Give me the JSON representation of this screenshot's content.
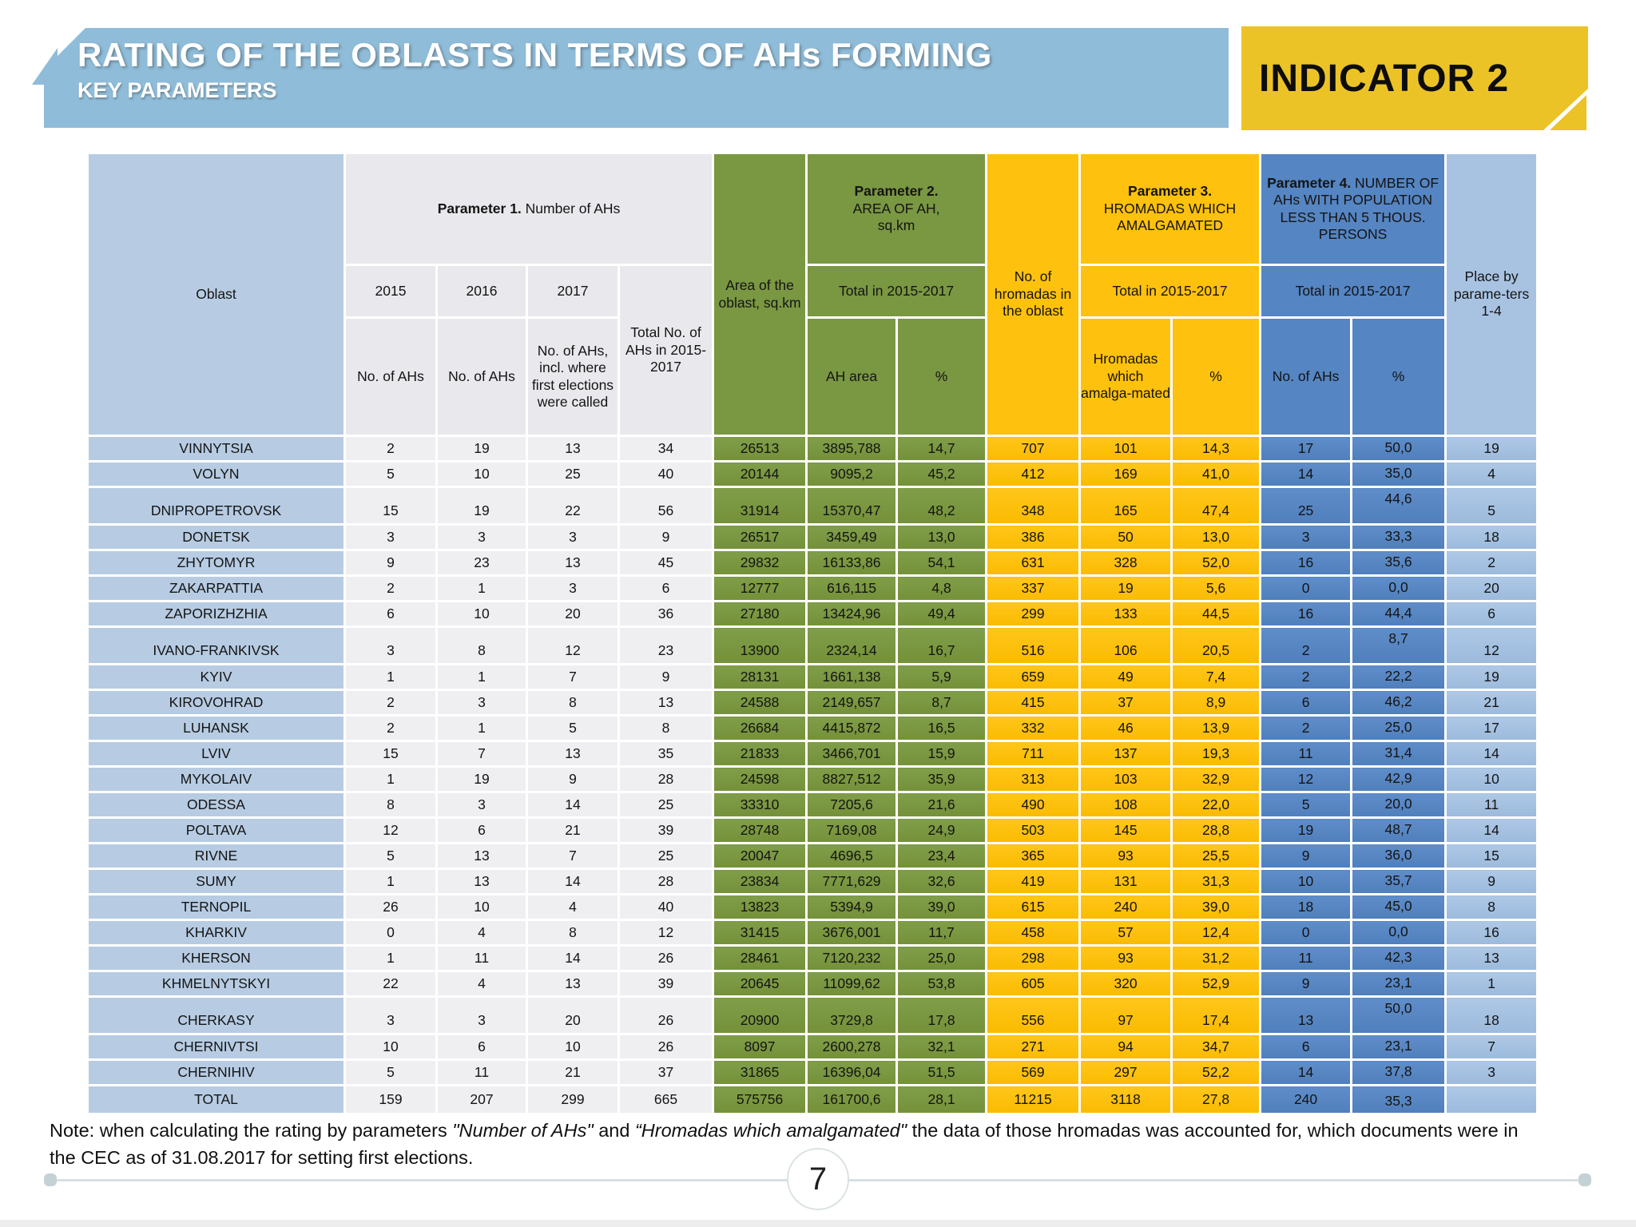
{
  "header": {
    "title": "RATING OF THE OBLASTS IN TERMS OF AHs FORMING",
    "subtitle": "KEY PARAMETERS",
    "indicator_label": "INDICATOR 2"
  },
  "colors": {
    "band_blue": "#8FBCD8",
    "indicator_gold": "#ECC327",
    "table_green": "#7A9742",
    "table_gold": "#FEC10D",
    "param4_blue": "#5585C2",
    "place_blue": "#A8C3E2",
    "oblast_blue": "#B7CCE3"
  },
  "table": {
    "headers": {
      "oblast": "Oblast",
      "param1_bold": "Parameter 1.",
      "param1_rest": "  Number of AHs",
      "y2015": "2015",
      "y2016": "2016",
      "y2017": "2017",
      "no_of_ahs": "No. of AHs",
      "no_of_ahs_2017": "No. of AHs, incl. where first elections were called",
      "total_no": "Total No. of AHs in 2015-2017",
      "area_oblast": "Area of the oblast, sq.km",
      "param2_bold": "Parameter 2.",
      "param2_line2": "AREA OF AH,",
      "param2_line3": "sq.km",
      "total_2015_2017": "Total in 2015-2017",
      "ah_area": "AH area",
      "pct": "%",
      "no_hromadas": "No. of hromadas in the oblast",
      "param3_bold": "Parameter 3.",
      "param3_rest": "HROMADAS WHICH AMALGAMATED",
      "hromadas_amalg": "Hromadas which amalga-mated",
      "param4_bold": "Parameter 4.",
      "param4_rest": "  NUMBER OF AHs WITH POPULATION LESS THAN 5 THOUS. PERSONS",
      "place_l1": "Place by parame-ters",
      "place_l2": "1-4"
    },
    "rows": [
      {
        "cells": [
          "VINNYTSIA",
          "2",
          "19",
          "13",
          "34",
          "26513",
          "3895,788",
          "14,7",
          "707",
          "101",
          "14,3",
          "17",
          "50,0",
          "19"
        ]
      },
      {
        "cells": [
          "VOLYN",
          "5",
          "10",
          "25",
          "40",
          "20144",
          "9095,2",
          "45,2",
          "412",
          "169",
          "41,0",
          "14",
          "35,0",
          "4"
        ]
      },
      {
        "cells": [
          "DNIPROPETROVSK",
          "15",
          "19",
          "22",
          "56",
          "31914",
          "15370,47",
          "48,2",
          "348",
          "165",
          "47,4",
          "25",
          "44,6",
          "5"
        ],
        "tall": true
      },
      {
        "cells": [
          "DONETSK",
          "3",
          "3",
          "3",
          "9",
          "26517",
          "3459,49",
          "13,0",
          "386",
          "50",
          "13,0",
          "3",
          "33,3",
          "18"
        ]
      },
      {
        "cells": [
          "ZHYTOMYR",
          "9",
          "23",
          "13",
          "45",
          "29832",
          "16133,86",
          "54,1",
          "631",
          "328",
          "52,0",
          "16",
          "35,6",
          "2"
        ]
      },
      {
        "cells": [
          "ZAKARPATTIA",
          "2",
          "1",
          "3",
          "6",
          "12777",
          "616,115",
          "4,8",
          "337",
          "19",
          "5,6",
          "0",
          "0,0",
          "20"
        ]
      },
      {
        "cells": [
          "ZAPORIZHZHIA",
          "6",
          "10",
          "20",
          "36",
          "27180",
          "13424,96",
          "49,4",
          "299",
          "133",
          "44,5",
          "16",
          "44,4",
          "6"
        ]
      },
      {
        "cells": [
          "IVANO-FRANKIVSK",
          "3",
          "8",
          "12",
          "23",
          "13900",
          "2324,14",
          "16,7",
          "516",
          "106",
          "20,5",
          "2",
          "8,7",
          "12"
        ],
        "tall": true
      },
      {
        "cells": [
          "KYIV",
          "1",
          "1",
          "7",
          "9",
          "28131",
          "1661,138",
          "5,9",
          "659",
          "49",
          "7,4",
          "2",
          "22,2",
          "19"
        ]
      },
      {
        "cells": [
          "KIROVOHRAD",
          "2",
          "3",
          "8",
          "13",
          "24588",
          "2149,657",
          "8,7",
          "415",
          "37",
          "8,9",
          "6",
          "46,2",
          "21"
        ]
      },
      {
        "cells": [
          "LUHANSK",
          "2",
          "1",
          "5",
          "8",
          "26684",
          "4415,872",
          "16,5",
          "332",
          "46",
          "13,9",
          "2",
          "25,0",
          "17"
        ]
      },
      {
        "cells": [
          "LVIV",
          "15",
          "7",
          "13",
          "35",
          "21833",
          "3466,701",
          "15,9",
          "711",
          "137",
          "19,3",
          "11",
          "31,4",
          "14"
        ]
      },
      {
        "cells": [
          "MYKOLAIV",
          "1",
          "19",
          "9",
          "28",
          "24598",
          "8827,512",
          "35,9",
          "313",
          "103",
          "32,9",
          "12",
          "42,9",
          "10"
        ]
      },
      {
        "cells": [
          "ODESSA",
          "8",
          "3",
          "14",
          "25",
          "33310",
          "7205,6",
          "21,6",
          "490",
          "108",
          "22,0",
          "5",
          "20,0",
          "11"
        ]
      },
      {
        "cells": [
          "POLTAVA",
          "12",
          "6",
          "21",
          "39",
          "28748",
          "7169,08",
          "24,9",
          "503",
          "145",
          "28,8",
          "19",
          "48,7",
          "14"
        ]
      },
      {
        "cells": [
          "RIVNE",
          "5",
          "13",
          "7",
          "25",
          "20047",
          "4696,5",
          "23,4",
          "365",
          "93",
          "25,5",
          "9",
          "36,0",
          "15"
        ]
      },
      {
        "cells": [
          "SUMY",
          "1",
          "13",
          "14",
          "28",
          "23834",
          "7771,629",
          "32,6",
          "419",
          "131",
          "31,3",
          "10",
          "35,7",
          "9"
        ]
      },
      {
        "cells": [
          "TERNOPIL",
          "26",
          "10",
          "4",
          "40",
          "13823",
          "5394,9",
          "39,0",
          "615",
          "240",
          "39,0",
          "18",
          "45,0",
          "8"
        ]
      },
      {
        "cells": [
          "KHARKIV",
          "0",
          "4",
          "8",
          "12",
          "31415",
          "3676,001",
          "11,7",
          "458",
          "57",
          "12,4",
          "0",
          "0,0",
          "16"
        ]
      },
      {
        "cells": [
          "KHERSON",
          "1",
          "11",
          "14",
          "26",
          "28461",
          "7120,232",
          "25,0",
          "298",
          "93",
          "31,2",
          "11",
          "42,3",
          "13"
        ]
      },
      {
        "cells": [
          "KHMELNYTSKYI",
          "22",
          "4",
          "13",
          "39",
          "20645",
          "11099,62",
          "53,8",
          "605",
          "320",
          "52,9",
          "9",
          "23,1",
          "1"
        ]
      },
      {
        "cells": [
          "CHERKASY",
          "3",
          "3",
          "20",
          "26",
          "20900",
          "3729,8",
          "17,8",
          "556",
          "97",
          "17,4",
          "13",
          "50,0",
          "18"
        ],
        "tall": true
      },
      {
        "cells": [
          "CHERNIVTSI",
          "10",
          "6",
          "10",
          "26",
          "8097",
          "2600,278",
          "32,1",
          "271",
          "94",
          "34,7",
          "6",
          "23,1",
          "7"
        ]
      },
      {
        "cells": [
          "CHERNIHIV",
          "5",
          "11",
          "21",
          "37",
          "31865",
          "16396,04",
          "51,5",
          "569",
          "297",
          "52,2",
          "14",
          "37,8",
          "3"
        ]
      },
      {
        "cells": [
          "TOTAL",
          "159",
          "207",
          "299",
          "665",
          "575756",
          "161700,6",
          "28,1",
          "11215",
          "3118",
          "27,8",
          "240",
          "35,3",
          ""
        ],
        "total": true
      }
    ]
  },
  "note": {
    "p1": "Note: when calculating the rating by parameters ",
    "i1": "\"Number of AHs\"",
    "p2": " and ",
    "i2": "“Hromadas which amalgamated\"",
    "p3": " the data of those hromadas was accounted for, which documents were in the CEC as of 31.08.2017 for setting first elections."
  },
  "footer": {
    "page_number": "7"
  }
}
